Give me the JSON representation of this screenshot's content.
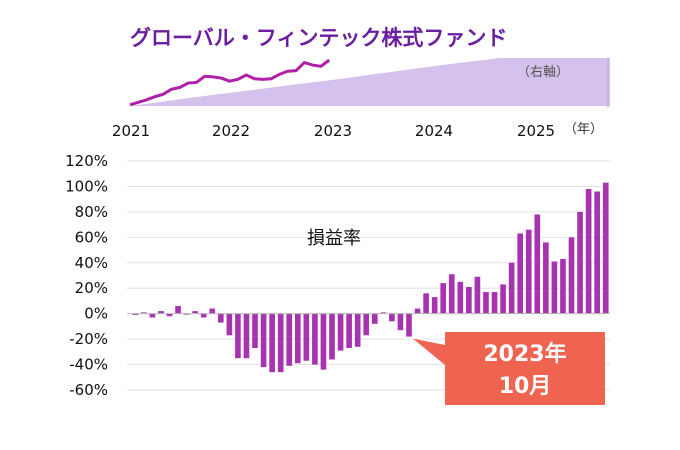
{
  "title": "グローバル・フィンテック株式ファンド",
  "top_panel": {
    "axis_note": "（右軸）",
    "line_values": [
      0.2,
      0.6,
      1.0,
      1.5,
      1.9,
      2.7,
      3.0,
      3.7,
      3.8,
      4.8,
      4.7,
      4.5,
      4.0,
      4.3,
      5.0,
      4.4,
      4.3,
      4.4,
      5.1,
      5.6,
      5.7,
      7.0,
      6.6,
      6.4,
      7.4
    ],
    "area_values": [
      0.0,
      0.9,
      1.8,
      2.6,
      3.5,
      4.3,
      5.2,
      6.1,
      7.0,
      7.8,
      8.7,
      9.6,
      10.0
    ],
    "colors": {
      "line": "#b020a8",
      "area": "#d4c2ec",
      "border": "#ffffff"
    }
  },
  "x_axis": {
    "year_labels": [
      "2021",
      "2022",
      "2023",
      "2024",
      "2025"
    ],
    "unit": "（年）"
  },
  "chart_data": {
    "type": "bar",
    "ylabel": "",
    "inner_label": "損益率",
    "ylim": [
      -60,
      120
    ],
    "yticks": [
      {
        "value": 120,
        "label": "120%"
      },
      {
        "value": 100,
        "label": "100%"
      },
      {
        "value": 80,
        "label": "80%"
      },
      {
        "value": 60,
        "label": "60%"
      },
      {
        "value": 40,
        "label": "40%"
      },
      {
        "value": 20,
        "label": "20%"
      },
      {
        "value": 0,
        "label": "0%"
      },
      {
        "value": -20,
        "label": "-20%"
      },
      {
        "value": -40,
        "label": "-40%"
      },
      {
        "value": -60,
        "label": "-60%"
      }
    ],
    "grid": true,
    "values": [
      -1,
      1,
      -3,
      2,
      -2,
      6,
      0,
      2,
      -3,
      4,
      -7,
      -17,
      -35,
      -35,
      -27,
      -42,
      -46,
      -46,
      -41,
      -39,
      -37,
      -40,
      -44,
      -36,
      -29,
      -27,
      -26,
      -17,
      -8,
      1,
      -6,
      -13,
      -18,
      4,
      16,
      13,
      24,
      31,
      25,
      21,
      29,
      17,
      17,
      23,
      40,
      63,
      66,
      78,
      56,
      41,
      43,
      60,
      80,
      98,
      96,
      103
    ],
    "bar_color": "#a833b0",
    "callout": {
      "line1": "2023年",
      "line2": "10月",
      "index": 32,
      "color": "#ef6351"
    }
  }
}
